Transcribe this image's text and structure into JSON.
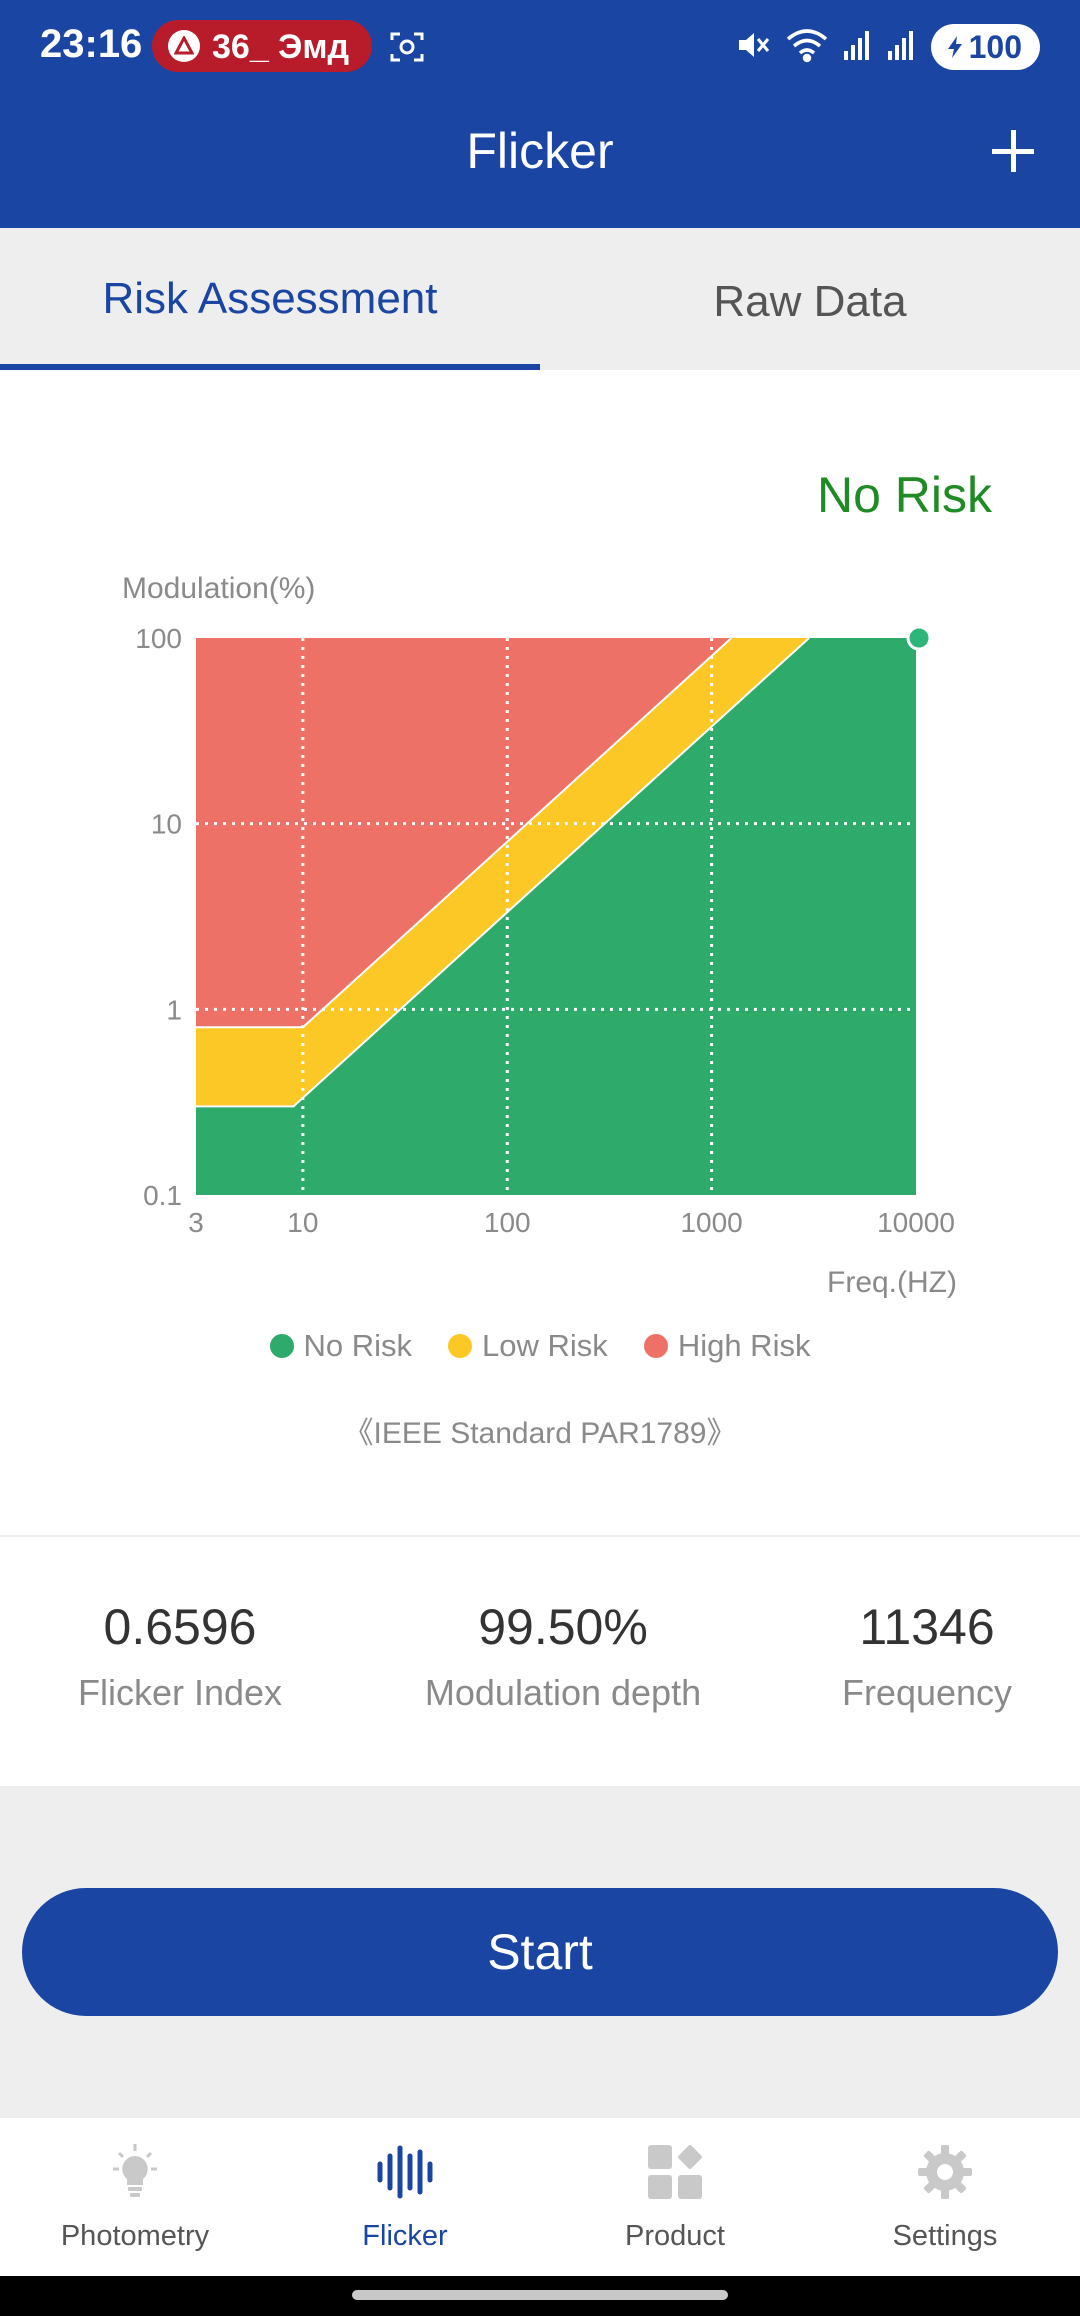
{
  "status_bar": {
    "time": "23:16",
    "notification": "36_ Эмд",
    "battery": "100"
  },
  "app_bar": {
    "title": "Flicker",
    "add_icon": "plus-icon"
  },
  "tabs": [
    {
      "label": "Risk Assessment",
      "active": true
    },
    {
      "label": "Raw Data",
      "active": false
    }
  ],
  "risk_result": "No Risk",
  "chart_data": {
    "type": "area",
    "ylabel": "Modulation(%)",
    "xlabel": "Freq.(HZ)",
    "x_scale": "log",
    "y_scale": "log",
    "xlim": [
      3,
      10000
    ],
    "ylim": [
      0.1,
      100
    ],
    "x_ticks": [
      "3",
      "10",
      "100",
      "1000",
      "10000"
    ],
    "y_ticks": [
      "100",
      "10",
      "1",
      "0.1"
    ],
    "grid": true,
    "series": [
      {
        "name": "No Risk",
        "color": "#2eaa6a",
        "boundary": [
          [
            3,
            0.3
          ],
          [
            9,
            0.3
          ],
          [
            3000,
            100
          ]
        ]
      },
      {
        "name": "Low Risk",
        "color": "#fcc825",
        "boundary": [
          [
            3,
            0.8
          ],
          [
            10,
            0.8
          ],
          [
            1250,
            100
          ]
        ]
      },
      {
        "name": "High Risk",
        "color": "#ee7167",
        "boundary": [
          [
            3,
            100
          ],
          [
            10000,
            100
          ]
        ]
      }
    ],
    "measured_point": {
      "x": 10000,
      "y": 100,
      "color": "#2eb57a"
    }
  },
  "legend": [
    {
      "label": "No Risk",
      "color": "#2eaa6a"
    },
    {
      "label": "Low Risk",
      "color": "#fcc825"
    },
    {
      "label": "High Risk",
      "color": "#ee7167"
    }
  ],
  "standard_note": "《IEEE Standard PAR1789》",
  "metrics": [
    {
      "value": "0.6596",
      "label": "Flicker Index"
    },
    {
      "value": "99.50%",
      "label": "Modulation depth"
    },
    {
      "value": "11346",
      "label": "Frequency"
    }
  ],
  "start_button": "Start",
  "bottom_nav": [
    {
      "label": "Photometry",
      "icon": "bulb-icon",
      "active": false
    },
    {
      "label": "Flicker",
      "icon": "waveform-icon",
      "active": true
    },
    {
      "label": "Product",
      "icon": "grid-icon",
      "active": false
    },
    {
      "label": "Settings",
      "icon": "gear-icon",
      "active": false
    }
  ]
}
